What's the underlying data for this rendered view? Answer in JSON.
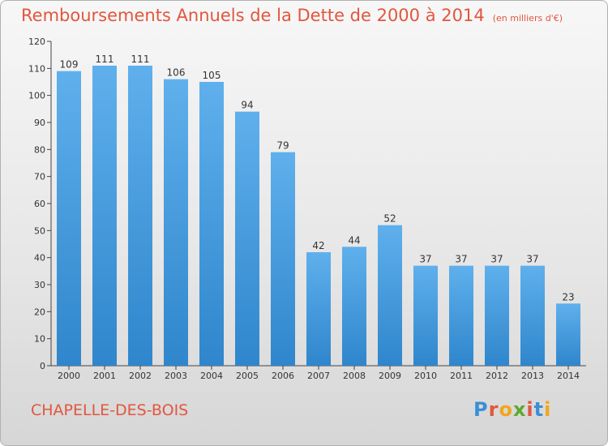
{
  "header": {
    "title": "Remboursements Annuels de la Dette de 2000 à 2014",
    "unit": "(en milliers d'€)"
  },
  "footer": {
    "commune": "CHAPELLE-DES-BOIS",
    "logo": {
      "letters": [
        "P",
        "r",
        "o",
        "x",
        "i",
        "t",
        "i"
      ],
      "colors": [
        "#3a8fd6",
        "#e2563f",
        "#f2a51c",
        "#5caa2f",
        "#e2563f",
        "#3a8fd6",
        "#f2a51c"
      ]
    }
  },
  "chart_data": {
    "type": "bar",
    "title": "Remboursements Annuels de la Dette de 2000 à 2014",
    "categories": [
      "2000",
      "2001",
      "2002",
      "2003",
      "2004",
      "2005",
      "2006",
      "2007",
      "2008",
      "2009",
      "2010",
      "2011",
      "2012",
      "2013",
      "2014"
    ],
    "values": [
      109,
      111,
      111,
      106,
      105,
      94,
      79,
      42,
      44,
      52,
      37,
      37,
      37,
      37,
      23
    ],
    "ylim": [
      0,
      120
    ],
    "yticks": [
      0,
      10,
      20,
      30,
      40,
      50,
      60,
      70,
      80,
      90,
      100,
      110,
      120
    ],
    "grid": false,
    "bar_color": "#4a9ee0"
  }
}
